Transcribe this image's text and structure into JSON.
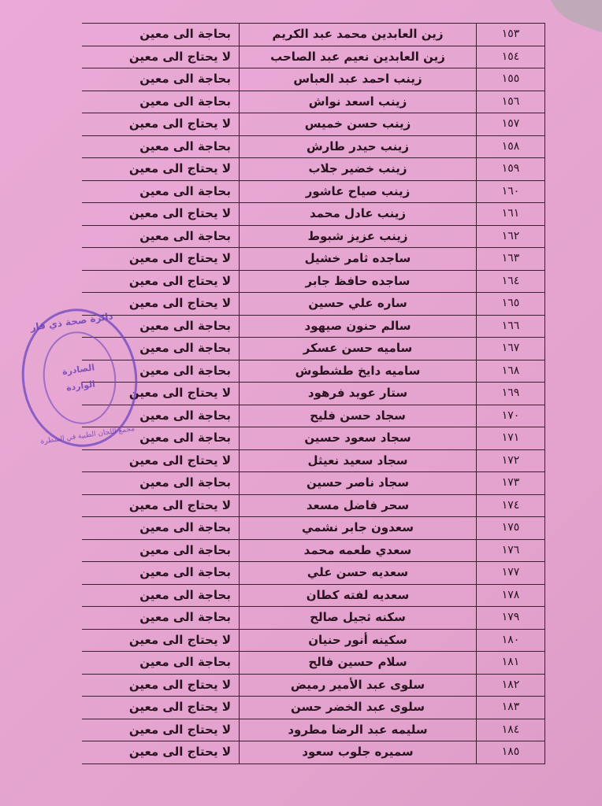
{
  "document": {
    "rows": [
      {
        "num": "١٥٣",
        "name": "زين العابدين محمد عبد الكريم",
        "status": "بحاجة الى معين"
      },
      {
        "num": "١٥٤",
        "name": "زين العابدين نعيم عبد الصاحب",
        "status": "لا يحتاج الى معين"
      },
      {
        "num": "١٥٥",
        "name": "زينب احمد عبد العباس",
        "status": "بحاجة الى معين"
      },
      {
        "num": "١٥٦",
        "name": "زينب اسعد نواش",
        "status": "بحاجة الى معين"
      },
      {
        "num": "١٥٧",
        "name": "زينب حسن خميس",
        "status": "لا يحتاج الى معين"
      },
      {
        "num": "١٥٨",
        "name": "زينب حيدر طارش",
        "status": "بحاجة الى معين"
      },
      {
        "num": "١٥٩",
        "name": "زينب خضير جلاب",
        "status": "لا يحتاج الى معين"
      },
      {
        "num": "١٦٠",
        "name": "زينب صياح عاشور",
        "status": "بحاجة الى معين"
      },
      {
        "num": "١٦١",
        "name": "زينب عادل محمد",
        "status": "لا يحتاج الى معين"
      },
      {
        "num": "١٦٢",
        "name": "زينب عزيز شبوط",
        "status": "بحاجة الى معين"
      },
      {
        "num": "١٦٣",
        "name": "ساجده ثامر خشيل",
        "status": "لا يحتاج الى معين"
      },
      {
        "num": "١٦٤",
        "name": "ساجده حافظ جابر",
        "status": "لا يحتاج الى معين"
      },
      {
        "num": "١٦٥",
        "name": "ساره علي حسين",
        "status": "لا يحتاج الى معين"
      },
      {
        "num": "١٦٦",
        "name": "سالم حنون صيهود",
        "status": "بحاجة الى معين"
      },
      {
        "num": "١٦٧",
        "name": "ساميه حسن عسكر",
        "status": "بحاجة الى معين"
      },
      {
        "num": "١٦٨",
        "name": "ساميه دايخ طشطوش",
        "status": "بحاجة الى معين"
      },
      {
        "num": "١٦٩",
        "name": "ستار عويد فرهود",
        "status": "لا يحتاج الى معين"
      },
      {
        "num": "١٧٠",
        "name": "سجاد حسن فليح",
        "status": "بحاجة الى معين"
      },
      {
        "num": "١٧١",
        "name": "سجاد سعود حسين",
        "status": "بحاجة الى معين"
      },
      {
        "num": "١٧٢",
        "name": "سجاد سعيد نعيثل",
        "status": "لا يحتاج الى معين"
      },
      {
        "num": "١٧٣",
        "name": "سجاد ناصر حسين",
        "status": "بحاجة الى معين"
      },
      {
        "num": "١٧٤",
        "name": "سحر فاضل مسعد",
        "status": "لا يحتاج الى معين"
      },
      {
        "num": "١٧٥",
        "name": "سعدون جابر نشمي",
        "status": "بحاجة الى معين"
      },
      {
        "num": "١٧٦",
        "name": "سعدي طعمه محمد",
        "status": "بحاجة الى معين"
      },
      {
        "num": "١٧٧",
        "name": "سعديه حسن علي",
        "status": "بحاجة الى معين"
      },
      {
        "num": "١٧٨",
        "name": "سعديه لفته كطان",
        "status": "بحاجة الى معين"
      },
      {
        "num": "١٧٩",
        "name": "سكنه ثجيل صالح",
        "status": "بحاجة الى معين"
      },
      {
        "num": "١٨٠",
        "name": "سكينه أنور حنيان",
        "status": "لا يحتاج الى معين"
      },
      {
        "num": "١٨١",
        "name": "سلام حسين فالح",
        "status": "بحاجة الى معين"
      },
      {
        "num": "١٨٢",
        "name": "سلوى عبد الأمير رميض",
        "status": "لا يحتاج الى معين"
      },
      {
        "num": "١٨٣",
        "name": "سلوى عبد الخضر حسن",
        "status": "لا يحتاج الى معين"
      },
      {
        "num": "١٨٤",
        "name": "سليمه عبد الرضا مطرود",
        "status": "لا يحتاج الى معين"
      },
      {
        "num": "١٨٥",
        "name": "سميره جلوب سعود",
        "status": "لا يحتاج الى معين"
      }
    ]
  },
  "stamp": {
    "top": "دائرة صحة ذي قار",
    "line1": "الصادرة",
    "line2": "الواردة",
    "bottom": "مجمع اللجان الطبية في الشطرة",
    "color": "#6e46be"
  },
  "colors": {
    "paper": "#e6a6d2",
    "ink": "#2a1220"
  }
}
